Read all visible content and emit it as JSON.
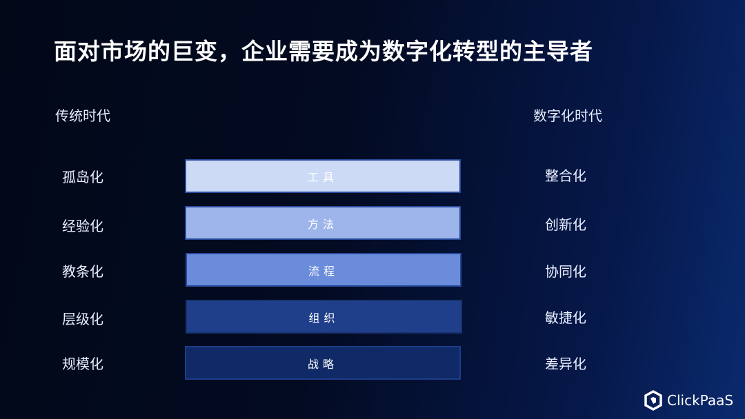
{
  "title": "面对市场的巨变，企业需要成为数字化转型的主导者",
  "left_header": "传统时代",
  "right_header": "数字化时代",
  "left_items": [
    "孤岛化",
    "经验化",
    "教条化",
    "层级化",
    "规模化"
  ],
  "right_items": [
    "整合化",
    "创新化",
    "协同化",
    "敏捷化",
    "差异化"
  ],
  "layers": [
    {
      "label": "工具",
      "color": "#ccdaf6"
    },
    {
      "label": "方法",
      "color": "#9db5ea"
    },
    {
      "label": "流程",
      "color": "#6a8cdb"
    },
    {
      "label": "组织",
      "color": "#1f3f8a"
    },
    {
      "label": "战略",
      "color": "#0f2a66"
    }
  ],
  "brand": "ClickPaaS"
}
